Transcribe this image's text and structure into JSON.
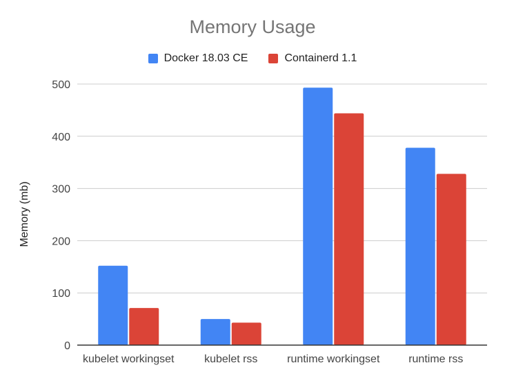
{
  "chart_data": {
    "type": "bar",
    "title": "Memory Usage",
    "xlabel": "",
    "ylabel": "Memory (mb)",
    "ylim": [
      0,
      500
    ],
    "yticks": [
      0,
      100,
      200,
      300,
      400,
      500
    ],
    "grid": true,
    "legend_position": "top",
    "categories": [
      "kubelet workingset",
      "kubelet rss",
      "runtime workingset",
      "runtime rss"
    ],
    "series": [
      {
        "name": "Docker 18.03 CE",
        "color": "#4285f4",
        "values": [
          152,
          50,
          493,
          378
        ]
      },
      {
        "name": "Containerd 1.1",
        "color": "#db4437",
        "values": [
          71,
          43,
          444,
          328
        ]
      }
    ]
  }
}
